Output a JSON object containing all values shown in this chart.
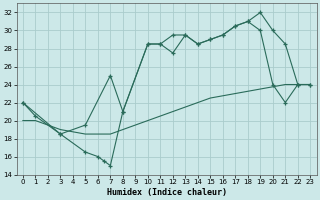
{
  "xlabel": "Humidex (Indice chaleur)",
  "bg_color": "#cce8e8",
  "grid_color": "#aacccc",
  "line_color": "#2a6b5a",
  "xlim": [
    -0.5,
    23.5
  ],
  "ylim": [
    14,
    33
  ],
  "yticks": [
    14,
    16,
    18,
    20,
    22,
    24,
    26,
    28,
    30,
    32
  ],
  "xticks": [
    0,
    1,
    2,
    3,
    4,
    5,
    6,
    7,
    8,
    9,
    10,
    11,
    12,
    13,
    14,
    15,
    16,
    17,
    18,
    19,
    20,
    21,
    22,
    23
  ],
  "line1_x": [
    0,
    1,
    3,
    5,
    6,
    6.5,
    7,
    8,
    10,
    11,
    12,
    13,
    14,
    15,
    16,
    17,
    18,
    19,
    20,
    21,
    22,
    23
  ],
  "line1_y": [
    22,
    20.5,
    18.5,
    16.5,
    16,
    15.5,
    15,
    21,
    28.5,
    28.5,
    29.5,
    29.5,
    28.5,
    29,
    29.5,
    30.5,
    31,
    32,
    30,
    28.5,
    24,
    24
  ],
  "line2_x": [
    0,
    3,
    5,
    7,
    8,
    10,
    11,
    12,
    13,
    14,
    15,
    16,
    17,
    18,
    19,
    20,
    21,
    22,
    23
  ],
  "line2_y": [
    22,
    18.5,
    19.5,
    25,
    21,
    28.5,
    28.5,
    27.5,
    29.5,
    28.5,
    29,
    29.5,
    30.5,
    31,
    30,
    24,
    22,
    24,
    24
  ],
  "line3_x": [
    0,
    1,
    3,
    5,
    7,
    9,
    11,
    13,
    15,
    17,
    19,
    21,
    23
  ],
  "line3_y": [
    20,
    20,
    19,
    18.5,
    18.5,
    19.5,
    20.5,
    21.5,
    22.5,
    23,
    23.5,
    24,
    24
  ]
}
